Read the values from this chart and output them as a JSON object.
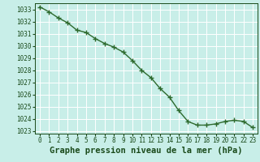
{
  "x": [
    0,
    1,
    2,
    3,
    4,
    5,
    6,
    7,
    8,
    9,
    10,
    11,
    12,
    13,
    14,
    15,
    16,
    17,
    18,
    19,
    20,
    21,
    22,
    23
  ],
  "y": [
    1033.2,
    1032.8,
    1032.3,
    1031.9,
    1031.3,
    1031.1,
    1030.6,
    1030.2,
    1029.9,
    1029.5,
    1028.8,
    1028.0,
    1027.4,
    1026.5,
    1025.8,
    1024.7,
    1023.8,
    1023.5,
    1023.5,
    1023.6,
    1023.8,
    1023.9,
    1023.8,
    1023.3
  ],
  "xlim": [
    -0.5,
    23.5
  ],
  "ylim": [
    1022.8,
    1033.5
  ],
  "yticks": [
    1023,
    1024,
    1025,
    1026,
    1027,
    1028,
    1029,
    1030,
    1031,
    1032,
    1033
  ],
  "xticks": [
    0,
    1,
    2,
    3,
    4,
    5,
    6,
    7,
    8,
    9,
    10,
    11,
    12,
    13,
    14,
    15,
    16,
    17,
    18,
    19,
    20,
    21,
    22,
    23
  ],
  "xlabel": "Graphe pression niveau de la mer (hPa)",
  "line_color": "#2d6a2d",
  "marker": "+",
  "marker_size": 4,
  "line_width": 1.0,
  "background_color": "#c8eee8",
  "grid_color": "#ffffff",
  "text_color": "#1a4a1a",
  "tick_fontsize": 5.5,
  "xlabel_fontsize": 7.5,
  "xlabel_fontweight": "bold"
}
